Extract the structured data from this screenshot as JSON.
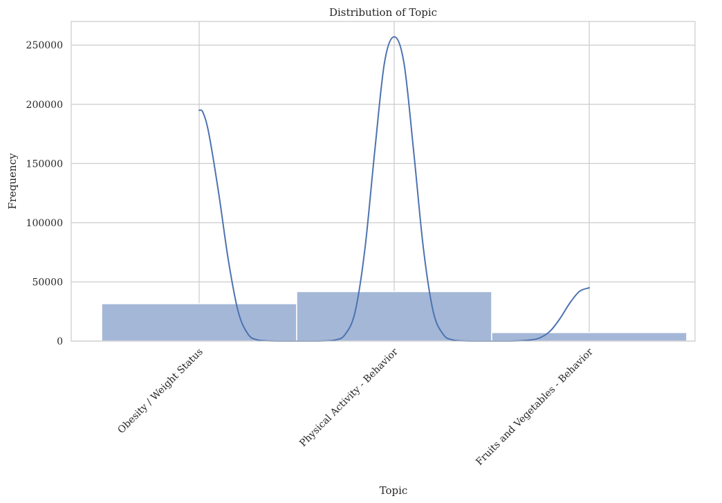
{
  "chart_data": {
    "type": "bar",
    "title": "Distribution of Topic",
    "xlabel": "Topic",
    "ylabel": "Frequency",
    "categories": [
      "Obesity / Weight Status",
      "Physical Activity - Behavior",
      "Fruits and Vegetables - Behavior"
    ],
    "values": [
      31600,
      41800,
      7200
    ],
    "ylim": [
      0,
      270000
    ],
    "yticks": [
      0,
      50000,
      100000,
      150000,
      200000,
      250000
    ],
    "ytick_labels": [
      "0",
      "50000",
      "100000",
      "150000",
      "200000",
      "250000"
    ],
    "kde": {
      "x": [
        0.0,
        0.02,
        0.05,
        0.1,
        0.15,
        0.2,
        0.25,
        0.3,
        0.4,
        0.5,
        0.6,
        0.7,
        0.75,
        0.8,
        0.85,
        0.9,
        0.95,
        1.0,
        1.05,
        1.1,
        1.15,
        1.2,
        1.25,
        1.3,
        1.4,
        1.5,
        1.6,
        1.7,
        1.75,
        1.8,
        1.85,
        1.9,
        1.95,
        2.0
      ],
      "y": [
        195000,
        193000,
        175000,
        125000,
        68000,
        25000,
        6000,
        1000,
        0,
        0,
        0,
        1000,
        6000,
        25000,
        78000,
        160000,
        235000,
        257000,
        235000,
        160000,
        78000,
        25000,
        6000,
        1000,
        0,
        0,
        0,
        1000,
        3000,
        8500,
        19000,
        32000,
        42000,
        45000
      ]
    },
    "grid": true,
    "legend": "none",
    "colors": {
      "bar_fill": "#a4b7d7",
      "line": "#4c72b0",
      "grid": "#cccccc",
      "text": "#262626"
    }
  }
}
